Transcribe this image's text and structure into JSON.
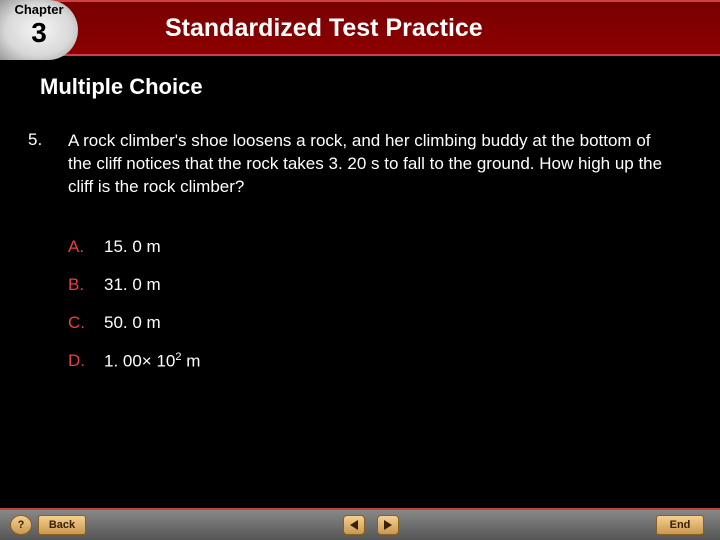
{
  "chapter": {
    "label": "Chapter",
    "number": "3"
  },
  "header": {
    "title": "Standardized Test Practice"
  },
  "subtitle": "Multiple Choice",
  "question": {
    "number": "5.",
    "text": "A rock climber's shoe loosens a rock, and her climbing buddy at the bottom of the cliff notices that the rock takes 3. 20 s to fall to the ground. How high up the cliff is the rock climber?"
  },
  "answers": [
    {
      "letter": "A.",
      "text": "15. 0 m"
    },
    {
      "letter": "B.",
      "text": "31. 0 m"
    },
    {
      "letter": "C.",
      "text": "50. 0 m"
    },
    {
      "letter": "D.",
      "text": "1. 00× 102 m",
      "superscript_at": "2"
    }
  ],
  "footer": {
    "help": "?",
    "back": "Back",
    "end": "End"
  },
  "colors": {
    "background": "#000000",
    "header_bg": "#8b0000",
    "answer_letter": "#e84040",
    "text": "#ffffff",
    "button_bg": "#e0b060"
  }
}
